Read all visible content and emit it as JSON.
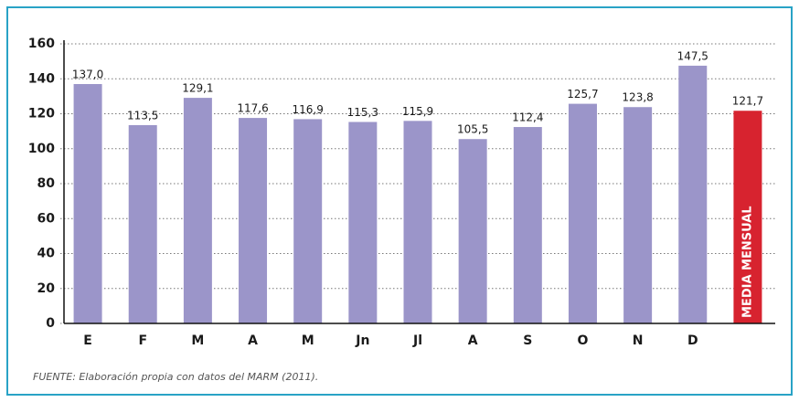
{
  "chart_data": {
    "type": "bar",
    "categories": [
      "E",
      "F",
      "M",
      "A",
      "M",
      "Jn",
      "Jl",
      "A",
      "S",
      "O",
      "N",
      "D",
      null
    ],
    "values": [
      137.0,
      113.5,
      129.1,
      117.6,
      116.9,
      115.3,
      115.9,
      105.5,
      112.4,
      125.7,
      123.8,
      147.5,
      121.7
    ],
    "value_labels": [
      "137,0",
      "113,5",
      "129,1",
      "117,6",
      "116,9",
      "115,3",
      "115,9",
      "105,5",
      "112,4",
      "125,7",
      "123,8",
      "147,5",
      "121,7"
    ],
    "colors": [
      "#9b95c9",
      "#9b95c9",
      "#9b95c9",
      "#9b95c9",
      "#9b95c9",
      "#9b95c9",
      "#9b95c9",
      "#9b95c9",
      "#9b95c9",
      "#9b95c9",
      "#9b95c9",
      "#9b95c9",
      "#d7232f"
    ],
    "annotation": "MEDIA MENSUAL",
    "ylim": [
      0,
      160
    ],
    "yticks": [
      0,
      20,
      40,
      60,
      80,
      100,
      120,
      140,
      160
    ],
    "grid": true,
    "source": "FUENTE: Elaboración propia con datos del MARM (2011)."
  }
}
